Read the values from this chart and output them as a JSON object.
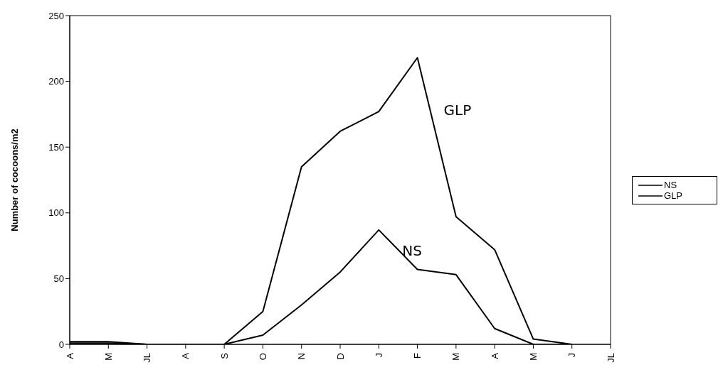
{
  "chart_data": {
    "type": "line",
    "ylabel": "Number of cocoons/m2",
    "categories": [
      "A",
      "M",
      "JL",
      "A",
      "S",
      "O",
      "N",
      "D",
      "J",
      "F",
      "M",
      "A",
      "M",
      "J",
      "JL"
    ],
    "series": [
      {
        "name": "NS",
        "color": "#000000",
        "values": [
          1,
          1,
          0,
          0,
          0,
          7,
          30,
          55,
          87,
          57,
          53,
          12,
          0,
          0,
          null
        ]
      },
      {
        "name": "GLP",
        "color": "#000000",
        "values": [
          2,
          2,
          0,
          0,
          0,
          25,
          135,
          162,
          177,
          218,
          97,
          72,
          4,
          0,
          null
        ]
      }
    ],
    "ylim": [
      0,
      250
    ],
    "yticks": [
      0,
      50,
      100,
      150,
      200,
      250
    ],
    "grid": false,
    "legend": "right",
    "marker": "none",
    "line_style": "solid",
    "annotations": [
      "GLP",
      "NS"
    ]
  }
}
